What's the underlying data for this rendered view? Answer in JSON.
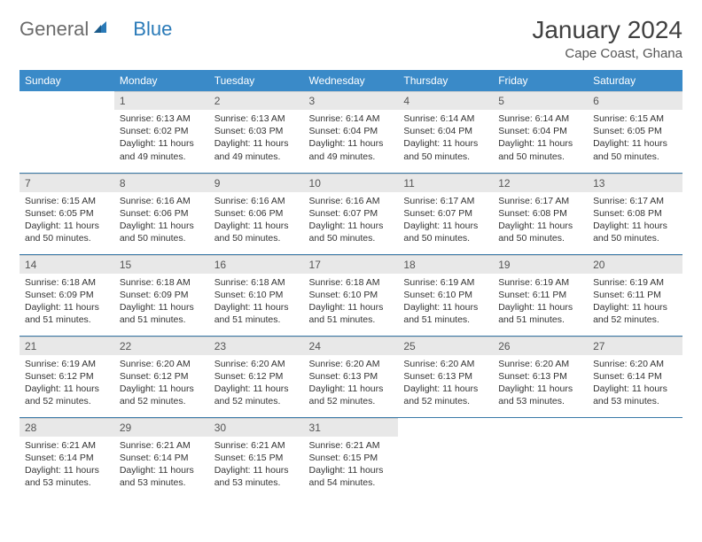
{
  "brand": {
    "text1": "General",
    "text2": "Blue"
  },
  "title": "January 2024",
  "location": "Cape Coast, Ghana",
  "colors": {
    "header_bg": "#3a8ac8",
    "header_text": "#ffffff",
    "daynum_bg": "#e8e8e8",
    "rule": "#3a7aa8",
    "brand_gray": "#6b6b6b",
    "brand_blue": "#2a7ab8"
  },
  "typography": {
    "title_fontsize": 28,
    "location_fontsize": 15,
    "dayheader_fontsize": 12,
    "daynum_fontsize": 12,
    "body_fontsize": 10.5
  },
  "layout": {
    "cols": 7,
    "rows": 5,
    "first_weekday_offset": 1
  },
  "weekdays": [
    "Sunday",
    "Monday",
    "Tuesday",
    "Wednesday",
    "Thursday",
    "Friday",
    "Saturday"
  ],
  "days": [
    {
      "n": 1,
      "sunrise": "6:13 AM",
      "sunset": "6:02 PM",
      "daylight": "11 hours and 49 minutes."
    },
    {
      "n": 2,
      "sunrise": "6:13 AM",
      "sunset": "6:03 PM",
      "daylight": "11 hours and 49 minutes."
    },
    {
      "n": 3,
      "sunrise": "6:14 AM",
      "sunset": "6:04 PM",
      "daylight": "11 hours and 49 minutes."
    },
    {
      "n": 4,
      "sunrise": "6:14 AM",
      "sunset": "6:04 PM",
      "daylight": "11 hours and 50 minutes."
    },
    {
      "n": 5,
      "sunrise": "6:14 AM",
      "sunset": "6:04 PM",
      "daylight": "11 hours and 50 minutes."
    },
    {
      "n": 6,
      "sunrise": "6:15 AM",
      "sunset": "6:05 PM",
      "daylight": "11 hours and 50 minutes."
    },
    {
      "n": 7,
      "sunrise": "6:15 AM",
      "sunset": "6:05 PM",
      "daylight": "11 hours and 50 minutes."
    },
    {
      "n": 8,
      "sunrise": "6:16 AM",
      "sunset": "6:06 PM",
      "daylight": "11 hours and 50 minutes."
    },
    {
      "n": 9,
      "sunrise": "6:16 AM",
      "sunset": "6:06 PM",
      "daylight": "11 hours and 50 minutes."
    },
    {
      "n": 10,
      "sunrise": "6:16 AM",
      "sunset": "6:07 PM",
      "daylight": "11 hours and 50 minutes."
    },
    {
      "n": 11,
      "sunrise": "6:17 AM",
      "sunset": "6:07 PM",
      "daylight": "11 hours and 50 minutes."
    },
    {
      "n": 12,
      "sunrise": "6:17 AM",
      "sunset": "6:08 PM",
      "daylight": "11 hours and 50 minutes."
    },
    {
      "n": 13,
      "sunrise": "6:17 AM",
      "sunset": "6:08 PM",
      "daylight": "11 hours and 50 minutes."
    },
    {
      "n": 14,
      "sunrise": "6:18 AM",
      "sunset": "6:09 PM",
      "daylight": "11 hours and 51 minutes."
    },
    {
      "n": 15,
      "sunrise": "6:18 AM",
      "sunset": "6:09 PM",
      "daylight": "11 hours and 51 minutes."
    },
    {
      "n": 16,
      "sunrise": "6:18 AM",
      "sunset": "6:10 PM",
      "daylight": "11 hours and 51 minutes."
    },
    {
      "n": 17,
      "sunrise": "6:18 AM",
      "sunset": "6:10 PM",
      "daylight": "11 hours and 51 minutes."
    },
    {
      "n": 18,
      "sunrise": "6:19 AM",
      "sunset": "6:10 PM",
      "daylight": "11 hours and 51 minutes."
    },
    {
      "n": 19,
      "sunrise": "6:19 AM",
      "sunset": "6:11 PM",
      "daylight": "11 hours and 51 minutes."
    },
    {
      "n": 20,
      "sunrise": "6:19 AM",
      "sunset": "6:11 PM",
      "daylight": "11 hours and 52 minutes."
    },
    {
      "n": 21,
      "sunrise": "6:19 AM",
      "sunset": "6:12 PM",
      "daylight": "11 hours and 52 minutes."
    },
    {
      "n": 22,
      "sunrise": "6:20 AM",
      "sunset": "6:12 PM",
      "daylight": "11 hours and 52 minutes."
    },
    {
      "n": 23,
      "sunrise": "6:20 AM",
      "sunset": "6:12 PM",
      "daylight": "11 hours and 52 minutes."
    },
    {
      "n": 24,
      "sunrise": "6:20 AM",
      "sunset": "6:13 PM",
      "daylight": "11 hours and 52 minutes."
    },
    {
      "n": 25,
      "sunrise": "6:20 AM",
      "sunset": "6:13 PM",
      "daylight": "11 hours and 52 minutes."
    },
    {
      "n": 26,
      "sunrise": "6:20 AM",
      "sunset": "6:13 PM",
      "daylight": "11 hours and 53 minutes."
    },
    {
      "n": 27,
      "sunrise": "6:20 AM",
      "sunset": "6:14 PM",
      "daylight": "11 hours and 53 minutes."
    },
    {
      "n": 28,
      "sunrise": "6:21 AM",
      "sunset": "6:14 PM",
      "daylight": "11 hours and 53 minutes."
    },
    {
      "n": 29,
      "sunrise": "6:21 AM",
      "sunset": "6:14 PM",
      "daylight": "11 hours and 53 minutes."
    },
    {
      "n": 30,
      "sunrise": "6:21 AM",
      "sunset": "6:15 PM",
      "daylight": "11 hours and 53 minutes."
    },
    {
      "n": 31,
      "sunrise": "6:21 AM",
      "sunset": "6:15 PM",
      "daylight": "11 hours and 54 minutes."
    }
  ],
  "labels": {
    "sunrise": "Sunrise:",
    "sunset": "Sunset:",
    "daylight": "Daylight:"
  }
}
